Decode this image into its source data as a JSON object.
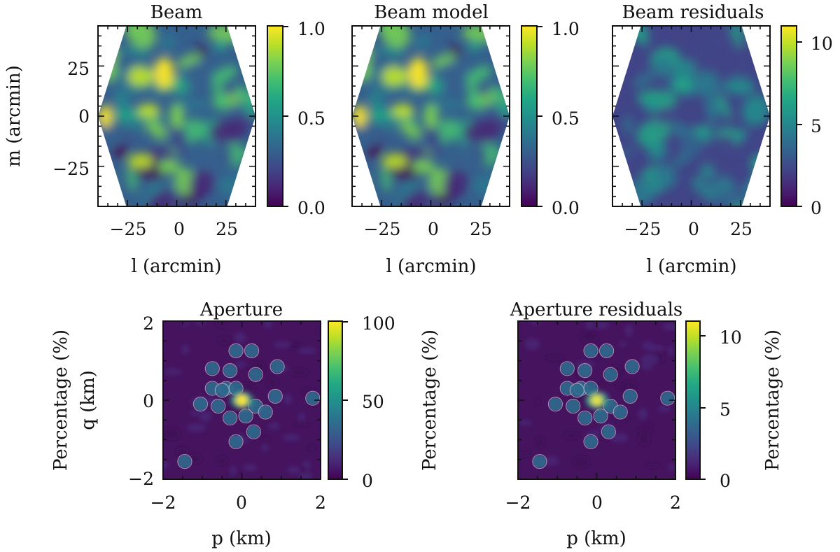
{
  "chart_data": [
    {
      "type": "heatmap",
      "title": "Beam",
      "xlabel": "l (arcmin)",
      "ylabel": "m (arcmin)",
      "xlim": [
        -40,
        40
      ],
      "ylim": [
        -45,
        45
      ],
      "x_ticks": [
        -25,
        0,
        25
      ],
      "x_tick_labels": [
        "−25",
        "0",
        "25"
      ],
      "y_ticks": [
        -25,
        0,
        25
      ],
      "y_tick_labels": [
        "−25",
        "0",
        "25"
      ],
      "colorbar": {
        "min": 0.0,
        "max": 1.0,
        "ticks": [
          0.0,
          0.5,
          1.0
        ],
        "tick_labels": [
          "0.0",
          "0.5",
          "1.0"
        ],
        "label": ""
      },
      "colormap": "viridis",
      "footprint": "hexagon"
    },
    {
      "type": "heatmap",
      "title": "Beam model",
      "xlabel": "l (arcmin)",
      "ylabel": "",
      "xlim": [
        -40,
        40
      ],
      "ylim": [
        -45,
        45
      ],
      "x_ticks": [
        -25,
        0,
        25
      ],
      "x_tick_labels": [
        "−25",
        "0",
        "25"
      ],
      "colorbar": {
        "min": 0.0,
        "max": 1.0,
        "ticks": [
          0.0,
          0.5,
          1.0
        ],
        "tick_labels": [
          "0.0",
          "0.5",
          "1.0"
        ],
        "label": ""
      },
      "colormap": "viridis",
      "footprint": "hexagon"
    },
    {
      "type": "heatmap",
      "title": "Beam residuals",
      "xlabel": "l (arcmin)",
      "ylabel": "",
      "xlim": [
        -40,
        40
      ],
      "ylim": [
        -45,
        45
      ],
      "x_ticks": [
        -25,
        0,
        25
      ],
      "x_tick_labels": [
        "−25",
        "0",
        "25"
      ],
      "colorbar": {
        "min": 0,
        "max": 11,
        "ticks": [
          0,
          5,
          10
        ],
        "tick_labels": [
          "0",
          "5",
          "10"
        ],
        "label": ""
      },
      "colormap": "viridis",
      "footprint": "hexagon"
    },
    {
      "type": "heatmap",
      "title": "Aperture",
      "xlabel": "p (km)",
      "ylabel": "q (km)",
      "ylabel_outer": "Percentage (%)",
      "xlim": [
        -2,
        2
      ],
      "ylim": [
        -2,
        2
      ],
      "x_ticks": [
        -2,
        0,
        2
      ],
      "x_tick_labels": [
        "−2",
        "0",
        "2"
      ],
      "y_ticks": [
        -2,
        0,
        2
      ],
      "y_tick_labels": [
        "−2",
        "0",
        "2"
      ],
      "colorbar": {
        "min": 0,
        "max": 100,
        "ticks": [
          0,
          50,
          100
        ],
        "tick_labels": [
          "0",
          "50",
          "100"
        ],
        "label": "Percentage (%)"
      },
      "colormap": "viridis",
      "stations_km": [
        [
          -0.15,
          1.25
        ],
        [
          0.25,
          1.25
        ],
        [
          -0.75,
          0.8
        ],
        [
          0.9,
          0.85
        ],
        [
          -0.3,
          0.75
        ],
        [
          0.35,
          0.65
        ],
        [
          -0.75,
          0.3
        ],
        [
          -0.4,
          0.3
        ],
        [
          -0.5,
          0.25
        ],
        [
          -0.15,
          0.3
        ],
        [
          0.85,
          0.1
        ],
        [
          -1.05,
          -0.1
        ],
        [
          -0.6,
          -0.15
        ],
        [
          0.35,
          -0.15
        ],
        [
          -0.3,
          -0.45
        ],
        [
          0.1,
          -0.4
        ],
        [
          0.6,
          -0.3
        ],
        [
          0.3,
          -0.8
        ],
        [
          -0.15,
          -1.05
        ],
        [
          1.8,
          0.05
        ],
        [
          -1.45,
          -1.55
        ]
      ],
      "peak_km": [
        0.0,
        0.0
      ]
    },
    {
      "type": "heatmap",
      "title": "Aperture residuals",
      "xlabel": "p (km)",
      "ylabel": "Percentage (%)",
      "xlim": [
        -2,
        2
      ],
      "ylim": [
        -2,
        2
      ],
      "x_ticks": [
        -2,
        0,
        2
      ],
      "x_tick_labels": [
        "−2",
        "0",
        "2"
      ],
      "colorbar": {
        "min": 0,
        "max": 11,
        "ticks": [
          0,
          5,
          10
        ],
        "tick_labels": [
          "0",
          "5",
          "10"
        ],
        "label": "Percentage (%)"
      },
      "colormap": "viridis",
      "stations_km": [
        [
          -0.15,
          1.25
        ],
        [
          0.25,
          1.25
        ],
        [
          -0.75,
          0.8
        ],
        [
          0.9,
          0.85
        ],
        [
          -0.3,
          0.75
        ],
        [
          0.35,
          0.65
        ],
        [
          -0.75,
          0.3
        ],
        [
          -0.4,
          0.3
        ],
        [
          -0.5,
          0.25
        ],
        [
          -0.15,
          0.3
        ],
        [
          0.85,
          0.1
        ],
        [
          -1.05,
          -0.1
        ],
        [
          -0.6,
          -0.15
        ],
        [
          0.35,
          -0.15
        ],
        [
          -0.3,
          -0.45
        ],
        [
          0.1,
          -0.4
        ],
        [
          0.6,
          -0.3
        ],
        [
          0.3,
          -0.8
        ],
        [
          -0.15,
          -1.05
        ],
        [
          1.8,
          0.05
        ],
        [
          -1.45,
          -1.55
        ]
      ],
      "peak_km": [
        0.0,
        0.0
      ]
    }
  ]
}
